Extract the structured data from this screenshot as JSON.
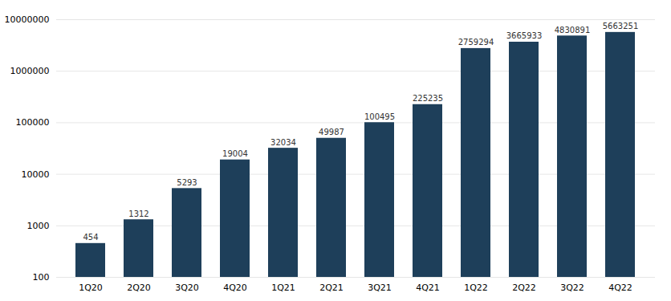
{
  "chart_data": {
    "type": "bar",
    "categories": [
      "1Q20",
      "2Q20",
      "3Q20",
      "4Q20",
      "1Q21",
      "2Q21",
      "3Q21",
      "4Q21",
      "1Q22",
      "2Q22",
      "3Q22",
      "4Q22"
    ],
    "values": [
      454,
      1312,
      5293,
      19004,
      32034,
      49987,
      100495,
      225235,
      2759294,
      3665933,
      4830891,
      5663251
    ],
    "color": "#1e3f5a",
    "log": "y",
    "ylim": [
      100,
      10000000
    ],
    "yticks": [
      100,
      1000,
      10000,
      100000,
      1000000,
      10000000
    ],
    "grid": true,
    "data_labels": true
  }
}
